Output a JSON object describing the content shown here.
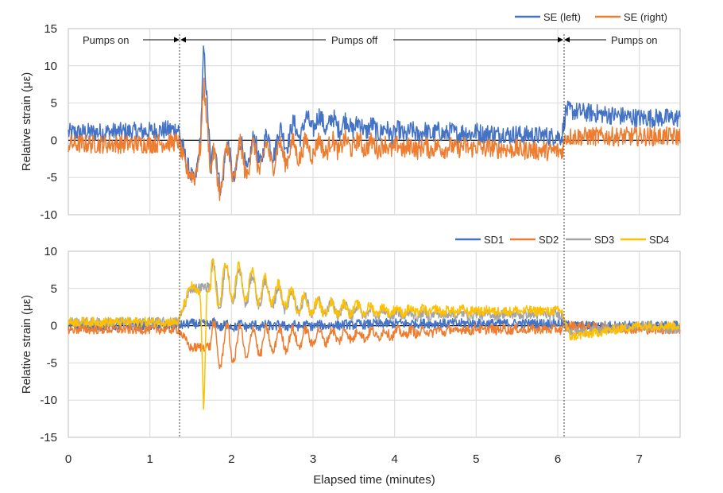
{
  "colors": {
    "blue": "#4472C4",
    "orange": "#ED7D31",
    "gray": "#A5A5A5",
    "yellow": "#FFC000"
  },
  "chart_data": [
    {
      "type": "line",
      "ylabel": "Relative strain (με)",
      "xlim": [
        0,
        7.5
      ],
      "ylim": [
        -10,
        15
      ],
      "yticks": [
        -10,
        -5,
        0,
        5,
        10,
        15
      ],
      "grid": true,
      "legend": "top-right",
      "annotations": [
        {
          "text": "Pumps on",
          "x_from": 0,
          "x_to": 1.37
        },
        {
          "text": "Pumps off",
          "x_from": 1.37,
          "x_to": 6.08
        },
        {
          "text": "Pumps on",
          "x_from": 6.08,
          "x_to": 7.5
        }
      ],
      "series": [
        {
          "name": "SE (left)",
          "color": "#4472C4",
          "x": [
            0,
            1.0,
            1.35,
            1.45,
            1.55,
            1.62,
            1.66,
            1.75,
            2.0,
            2.5,
            3.0,
            3.5,
            4.0,
            5.0,
            6.05,
            6.1,
            7.0,
            7.5
          ],
          "y": [
            1,
            1.2,
            1.5,
            -3,
            -6,
            0,
            12.5,
            -4,
            -3,
            -0.5,
            2.5,
            2,
            1,
            1,
            0.5,
            4,
            3,
            3
          ]
        },
        {
          "name": "SE (right)",
          "color": "#ED7D31",
          "x": [
            0,
            1.0,
            1.35,
            1.45,
            1.55,
            1.62,
            1.66,
            1.75,
            2.0,
            2.5,
            3.0,
            3.5,
            4.0,
            5.0,
            6.05,
            6.1,
            7.0,
            7.5
          ],
          "y": [
            -0.5,
            -0.5,
            -0.2,
            -4,
            -5,
            -1,
            8,
            -5,
            -3,
            -2,
            -1,
            -0.5,
            -1,
            -1,
            -1.5,
            0.5,
            0.5,
            0.5
          ]
        }
      ]
    },
    {
      "type": "line",
      "xlabel": "Elapsed time (minutes)",
      "ylabel": "Relative strain (με)",
      "xlim": [
        0,
        7.5
      ],
      "xticks": [
        0,
        1,
        2,
        3,
        4,
        5,
        6,
        7
      ],
      "ylim": [
        -15,
        10
      ],
      "yticks": [
        -15,
        -10,
        -5,
        0,
        5,
        10
      ],
      "grid": true,
      "legend": "top-right",
      "series": [
        {
          "name": "SD1",
          "color": "#4472C4",
          "x": [
            0,
            1.35,
            1.5,
            2.0,
            3.0,
            4.0,
            5.0,
            6.05,
            6.15,
            7.0,
            7.5
          ],
          "y": [
            0,
            0,
            0.3,
            0,
            0,
            0.3,
            0.3,
            0.3,
            0,
            0,
            0
          ]
        },
        {
          "name": "SD2",
          "color": "#ED7D31",
          "x": [
            0,
            1.35,
            1.5,
            2.0,
            3.0,
            4.0,
            5.0,
            6.05,
            6.15,
            7.0,
            7.5
          ],
          "y": [
            -0.5,
            -0.5,
            -3,
            -2.5,
            -1.5,
            -1,
            -0.5,
            -0.5,
            0,
            -0.5,
            -0.5
          ]
        },
        {
          "name": "SD3",
          "color": "#A5A5A5",
          "x": [
            0,
            1.35,
            1.5,
            2.0,
            2.5,
            3.0,
            4.0,
            5.0,
            6.05,
            6.15,
            7.0,
            7.5
          ],
          "y": [
            0.5,
            0.5,
            5,
            5.5,
            4,
            2.5,
            1.5,
            1.5,
            1.5,
            -1,
            0,
            -0.5
          ]
        },
        {
          "name": "SD4",
          "color": "#FFC000",
          "x": [
            0,
            1.35,
            1.5,
            1.62,
            1.66,
            1.7,
            2.0,
            2.5,
            3.0,
            4.0,
            5.0,
            6.05,
            6.15,
            7.0,
            7.5
          ],
          "y": [
            0.5,
            0.5,
            5.5,
            4,
            -12,
            5,
            6,
            4.5,
            2.5,
            2,
            2,
            2,
            -1.5,
            0,
            0
          ]
        }
      ]
    }
  ]
}
